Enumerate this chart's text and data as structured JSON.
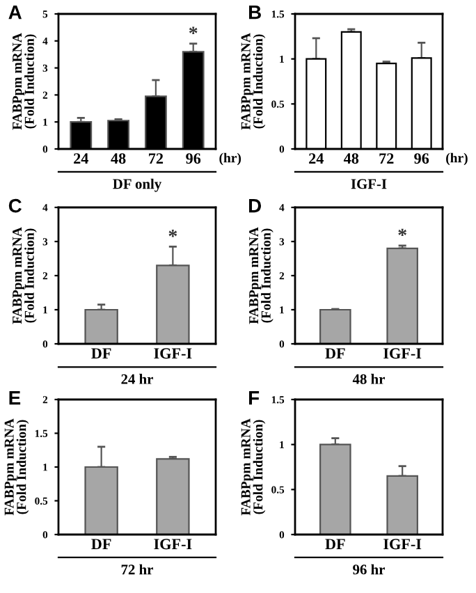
{
  "chart_data": [
    {
      "type": "bar",
      "title": "A",
      "ylabel": "FABPpm mRNA\n(Fold Induction)",
      "xlabel": "DF only",
      "categories": [
        "24",
        "48",
        "72",
        "96"
      ],
      "values": [
        1.0,
        1.05,
        1.95,
        3.6
      ],
      "errors": [
        [
          1.0,
          1.15
        ],
        [
          1.05,
          1.1
        ],
        [
          1.95,
          2.55
        ],
        [
          3.6,
          3.9
        ]
      ],
      "color": "#000000",
      "ylim": [
        0,
        5
      ],
      "yticks": [
        0,
        1,
        2,
        3,
        4,
        5
      ],
      "grid": false,
      "annotations": [
        {
          "text": "*",
          "x": "96",
          "y": 3.9
        },
        "(hr)"
      ]
    },
    {
      "type": "bar",
      "title": "B",
      "ylabel": "FABPpm mRNA\n(Fold Induction)",
      "xlabel": "IGF-I",
      "categories": [
        "24",
        "48",
        "72",
        "96"
      ],
      "values": [
        1.0,
        1.3,
        0.95,
        1.01
      ],
      "errors": [
        [
          1.0,
          1.23
        ],
        [
          1.3,
          1.33
        ],
        [
          0.95,
          0.97
        ],
        [
          1.01,
          1.18
        ]
      ],
      "color": "#ffffff",
      "ylim": [
        0,
        1.5
      ],
      "yticks": [
        0,
        0.5,
        1,
        1.5
      ],
      "grid": false,
      "annotations": [
        "(hr)"
      ]
    },
    {
      "type": "bar",
      "title": "C",
      "ylabel": "FABPpm mRNA\n(Fold Induction)",
      "xlabel": "24 hr",
      "categories": [
        "DF",
        "IGF-I"
      ],
      "values": [
        1.0,
        2.3
      ],
      "errors": [
        [
          1.0,
          1.15
        ],
        [
          2.3,
          2.85
        ]
      ],
      "color": "#a6a6a6",
      "ylim": [
        0,
        4
      ],
      "yticks": [
        0,
        1,
        2,
        3,
        4
      ],
      "grid": false,
      "annotations": [
        {
          "text": "*",
          "x": "IGF-I",
          "y": 2.85
        }
      ]
    },
    {
      "type": "bar",
      "title": "D",
      "ylabel": "FABPpm mRNA\n(Fold Induction)",
      "xlabel": "48 hr",
      "categories": [
        "DF",
        "IGF-I"
      ],
      "values": [
        1.0,
        2.8
      ],
      "errors": [
        [
          1.0,
          1.02
        ],
        [
          2.8,
          2.88
        ]
      ],
      "color": "#a6a6a6",
      "ylim": [
        0,
        4
      ],
      "yticks": [
        0,
        1,
        2,
        3,
        4
      ],
      "grid": false,
      "annotations": [
        {
          "text": "*",
          "x": "IGF-I",
          "y": 2.88
        }
      ]
    },
    {
      "type": "bar",
      "title": "E",
      "ylabel": "FABPpm mRNA\n(Fold Induction)",
      "xlabel": "72 hr",
      "categories": [
        "DF",
        "IGF-I"
      ],
      "values": [
        1.0,
        1.12
      ],
      "errors": [
        [
          1.0,
          1.3
        ],
        [
          1.12,
          1.15
        ]
      ],
      "color": "#a6a6a6",
      "ylim": [
        0,
        2
      ],
      "yticks": [
        0,
        0.5,
        1,
        1.5,
        2
      ],
      "grid": false
    },
    {
      "type": "bar",
      "title": "F",
      "ylabel": "FABPpm mRNA\n(Fold Induction)",
      "xlabel": "96 hr",
      "categories": [
        "DF",
        "IGF-I"
      ],
      "values": [
        1.0,
        0.65
      ],
      "errors": [
        [
          1.0,
          1.07
        ],
        [
          0.65,
          0.76
        ]
      ],
      "color": "#a6a6a6",
      "ylim": [
        0,
        1.5
      ],
      "yticks": [
        0,
        0.5,
        1,
        1.5
      ],
      "grid": false
    }
  ]
}
